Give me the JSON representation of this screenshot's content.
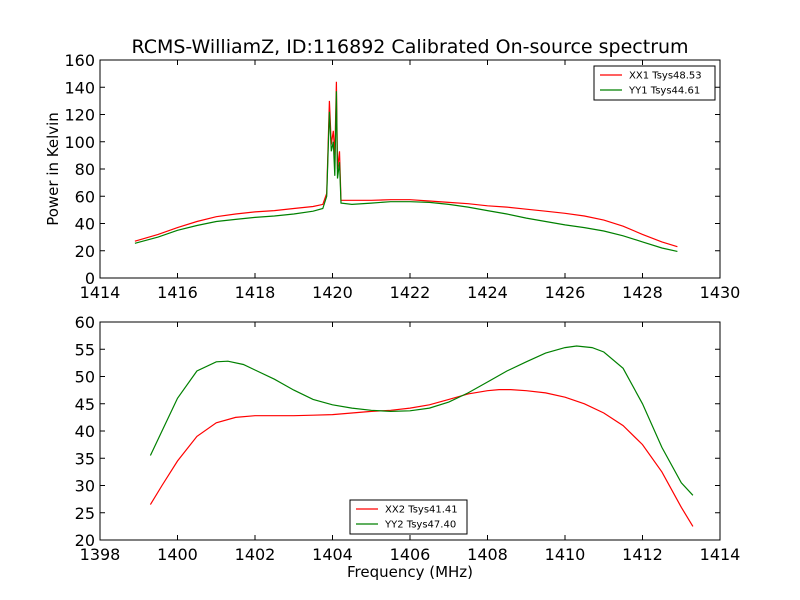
{
  "chart_data": [
    {
      "type": "line",
      "title": "RCMS-WilliamZ, ID:116892 Calibrated On-source spectrum",
      "xlabel": "",
      "ylabel": "Power in Kelvin",
      "xlim": [
        1414,
        1430
      ],
      "ylim": [
        0,
        160
      ],
      "xticks": [
        1414,
        1416,
        1418,
        1420,
        1422,
        1424,
        1426,
        1428,
        1430
      ],
      "yticks": [
        0,
        20,
        40,
        60,
        80,
        100,
        120,
        140,
        160
      ],
      "grid": false,
      "legend_position": "top-right",
      "series": [
        {
          "name": "XX1 Tsys48.53",
          "color": "#ff0000",
          "points": [
            [
              1414.9,
              27
            ],
            [
              1415.5,
              32
            ],
            [
              1416,
              37
            ],
            [
              1416.5,
              41.5
            ],
            [
              1417,
              45
            ],
            [
              1417.5,
              47
            ],
            [
              1418,
              48.5
            ],
            [
              1418.5,
              49.5
            ],
            [
              1419,
              51
            ],
            [
              1419.5,
              52.5
            ],
            [
              1419.75,
              54
            ],
            [
              1419.85,
              62
            ],
            [
              1419.92,
              130
            ],
            [
              1419.97,
              98
            ],
            [
              1420.02,
              108
            ],
            [
              1420.06,
              90
            ],
            [
              1420.1,
              144
            ],
            [
              1420.13,
              80
            ],
            [
              1420.18,
              93
            ],
            [
              1420.22,
              57
            ],
            [
              1420.5,
              57
            ],
            [
              1421,
              57
            ],
            [
              1421.5,
              57.5
            ],
            [
              1422,
              57.5
            ],
            [
              1422.5,
              56.5
            ],
            [
              1423,
              55.5
            ],
            [
              1423.5,
              54.5
            ],
            [
              1424,
              53
            ],
            [
              1424.5,
              52
            ],
            [
              1425,
              50.5
            ],
            [
              1425.5,
              49
            ],
            [
              1426,
              47.5
            ],
            [
              1426.5,
              45.5
            ],
            [
              1427,
              42.5
            ],
            [
              1427.5,
              38
            ],
            [
              1428,
              32
            ],
            [
              1428.5,
              26.5
            ],
            [
              1428.9,
              23
            ]
          ]
        },
        {
          "name": "YY1 Tsys44.61",
          "color": "#008000",
          "points": [
            [
              1414.9,
              25.5
            ],
            [
              1415.5,
              30
            ],
            [
              1416,
              35
            ],
            [
              1416.5,
              38.5
            ],
            [
              1417,
              41.5
            ],
            [
              1417.5,
              43
            ],
            [
              1418,
              44.5
            ],
            [
              1418.5,
              45.5
            ],
            [
              1419,
              47
            ],
            [
              1419.5,
              49
            ],
            [
              1419.75,
              51
            ],
            [
              1419.85,
              60
            ],
            [
              1419.92,
              122
            ],
            [
              1419.97,
              93
            ],
            [
              1420.02,
              100
            ],
            [
              1420.06,
              75
            ],
            [
              1420.1,
              137
            ],
            [
              1420.13,
              73
            ],
            [
              1420.18,
              85
            ],
            [
              1420.22,
              55
            ],
            [
              1420.5,
              54
            ],
            [
              1421,
              55
            ],
            [
              1421.5,
              56
            ],
            [
              1422,
              56
            ],
            [
              1422.5,
              55.5
            ],
            [
              1423,
              54
            ],
            [
              1423.5,
              52
            ],
            [
              1424,
              49.5
            ],
            [
              1424.5,
              47
            ],
            [
              1425,
              44
            ],
            [
              1425.5,
              41.5
            ],
            [
              1426,
              39
            ],
            [
              1426.5,
              37
            ],
            [
              1427,
              34.5
            ],
            [
              1427.5,
              31
            ],
            [
              1428,
              26.5
            ],
            [
              1428.5,
              22
            ],
            [
              1428.9,
              19.5
            ]
          ]
        }
      ]
    },
    {
      "type": "line",
      "title": "",
      "xlabel": "Frequency (MHz)",
      "ylabel": "",
      "xlim": [
        1398,
        1414
      ],
      "ylim": [
        20,
        60
      ],
      "xticks": [
        1398,
        1400,
        1402,
        1404,
        1406,
        1408,
        1410,
        1412,
        1414
      ],
      "yticks": [
        20,
        25,
        30,
        35,
        40,
        45,
        50,
        55,
        60
      ],
      "grid": false,
      "legend_position": "bottom-center",
      "series": [
        {
          "name": "XX2 Tsys41.41",
          "color": "#ff0000",
          "points": [
            [
              1399.3,
              26.5
            ],
            [
              1399.6,
              30
            ],
            [
              1400,
              34.5
            ],
            [
              1400.5,
              39
            ],
            [
              1401,
              41.5
            ],
            [
              1401.5,
              42.5
            ],
            [
              1402,
              42.8
            ],
            [
              1402.5,
              42.8
            ],
            [
              1403,
              42.8
            ],
            [
              1403.5,
              42.9
            ],
            [
              1404,
              43
            ],
            [
              1404.5,
              43.3
            ],
            [
              1405,
              43.6
            ],
            [
              1405.5,
              43.8
            ],
            [
              1406,
              44.2
            ],
            [
              1406.5,
              44.8
            ],
            [
              1407,
              45.8
            ],
            [
              1407.5,
              46.8
            ],
            [
              1408,
              47.4
            ],
            [
              1408.3,
              47.6
            ],
            [
              1408.6,
              47.6
            ],
            [
              1409,
              47.4
            ],
            [
              1409.5,
              47
            ],
            [
              1410,
              46.2
            ],
            [
              1410.5,
              45
            ],
            [
              1411,
              43.3
            ],
            [
              1411.5,
              41
            ],
            [
              1412,
              37.5
            ],
            [
              1412.5,
              32.5
            ],
            [
              1413,
              26
            ],
            [
              1413.3,
              22.5
            ]
          ]
        },
        {
          "name": "YY2 Tsys47.40",
          "color": "#008000",
          "points": [
            [
              1399.3,
              35.5
            ],
            [
              1399.6,
              40
            ],
            [
              1400,
              46
            ],
            [
              1400.5,
              51
            ],
            [
              1401,
              52.7
            ],
            [
              1401.3,
              52.8
            ],
            [
              1401.7,
              52.2
            ],
            [
              1402,
              51.2
            ],
            [
              1402.5,
              49.5
            ],
            [
              1403,
              47.5
            ],
            [
              1403.5,
              45.8
            ],
            [
              1404,
              44.8
            ],
            [
              1404.5,
              44.2
            ],
            [
              1405,
              43.8
            ],
            [
              1405.5,
              43.6
            ],
            [
              1406,
              43.7
            ],
            [
              1406.5,
              44.2
            ],
            [
              1407,
              45.3
            ],
            [
              1407.5,
              47
            ],
            [
              1408,
              49
            ],
            [
              1408.5,
              51
            ],
            [
              1409,
              52.7
            ],
            [
              1409.5,
              54.3
            ],
            [
              1410,
              55.3
            ],
            [
              1410.3,
              55.6
            ],
            [
              1410.7,
              55.3
            ],
            [
              1411,
              54.5
            ],
            [
              1411.5,
              51.5
            ],
            [
              1412,
              45
            ],
            [
              1412.5,
              37
            ],
            [
              1413,
              30.5
            ],
            [
              1413.3,
              28.2
            ]
          ]
        }
      ]
    }
  ]
}
